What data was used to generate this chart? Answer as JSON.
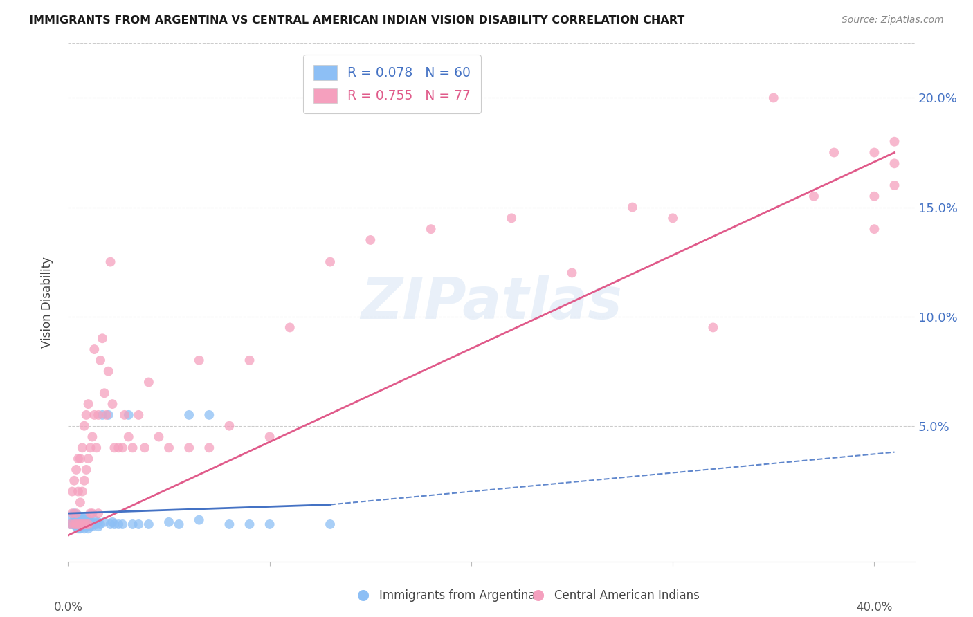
{
  "title": "IMMIGRANTS FROM ARGENTINA VS CENTRAL AMERICAN INDIAN VISION DISABILITY CORRELATION CHART",
  "source": "Source: ZipAtlas.com",
  "ylabel": "Vision Disability",
  "yticks": [
    0.0,
    0.05,
    0.1,
    0.15,
    0.2
  ],
  "ytick_labels": [
    "",
    "5.0%",
    "10.0%",
    "15.0%",
    "20.0%"
  ],
  "xtick_labels": [
    "0.0%",
    "",
    "",
    "",
    "40.0%"
  ],
  "xlim": [
    0.0,
    0.42
  ],
  "ylim": [
    -0.012,
    0.225
  ],
  "argentina_color": "#8dbff5",
  "argentina_color_line": "#4472c4",
  "cai_color": "#f5a0be",
  "cai_color_line": "#e05a8a",
  "argentina_R": 0.078,
  "argentina_N": 60,
  "cai_R": 0.755,
  "cai_N": 77,
  "watermark": "ZIPatlas",
  "legend_label_1": "Immigrants from Argentina",
  "legend_label_2": "Central American Indians",
  "argentina_x": [
    0.001,
    0.002,
    0.002,
    0.003,
    0.003,
    0.003,
    0.004,
    0.004,
    0.004,
    0.005,
    0.005,
    0.005,
    0.005,
    0.006,
    0.006,
    0.006,
    0.006,
    0.007,
    0.007,
    0.007,
    0.008,
    0.008,
    0.008,
    0.009,
    0.009,
    0.009,
    0.01,
    0.01,
    0.01,
    0.011,
    0.011,
    0.012,
    0.012,
    0.013,
    0.013,
    0.014,
    0.015,
    0.015,
    0.016,
    0.017,
    0.018,
    0.02,
    0.021,
    0.022,
    0.023,
    0.025,
    0.027,
    0.03,
    0.032,
    0.035,
    0.04,
    0.05,
    0.055,
    0.06,
    0.065,
    0.07,
    0.08,
    0.09,
    0.1,
    0.13
  ],
  "argentina_y": [
    0.005,
    0.005,
    0.008,
    0.005,
    0.007,
    0.01,
    0.004,
    0.006,
    0.008,
    0.003,
    0.005,
    0.007,
    0.009,
    0.003,
    0.005,
    0.006,
    0.008,
    0.004,
    0.006,
    0.008,
    0.003,
    0.005,
    0.007,
    0.004,
    0.006,
    0.008,
    0.003,
    0.005,
    0.007,
    0.004,
    0.006,
    0.004,
    0.006,
    0.005,
    0.007,
    0.005,
    0.004,
    0.006,
    0.005,
    0.055,
    0.006,
    0.055,
    0.005,
    0.006,
    0.005,
    0.005,
    0.005,
    0.055,
    0.005,
    0.005,
    0.005,
    0.006,
    0.005,
    0.055,
    0.007,
    0.055,
    0.005,
    0.005,
    0.005,
    0.005
  ],
  "cai_x": [
    0.001,
    0.002,
    0.002,
    0.003,
    0.003,
    0.004,
    0.004,
    0.004,
    0.005,
    0.005,
    0.005,
    0.006,
    0.006,
    0.006,
    0.007,
    0.007,
    0.007,
    0.008,
    0.008,
    0.008,
    0.009,
    0.009,
    0.009,
    0.01,
    0.01,
    0.01,
    0.011,
    0.011,
    0.012,
    0.012,
    0.013,
    0.013,
    0.014,
    0.015,
    0.015,
    0.016,
    0.017,
    0.018,
    0.019,
    0.02,
    0.021,
    0.022,
    0.023,
    0.025,
    0.027,
    0.028,
    0.03,
    0.032,
    0.035,
    0.038,
    0.04,
    0.045,
    0.05,
    0.06,
    0.065,
    0.07,
    0.08,
    0.09,
    0.1,
    0.11,
    0.13,
    0.15,
    0.18,
    0.22,
    0.25,
    0.28,
    0.3,
    0.32,
    0.35,
    0.37,
    0.38,
    0.4,
    0.4,
    0.4,
    0.41,
    0.41,
    0.41
  ],
  "cai_y": [
    0.005,
    0.01,
    0.02,
    0.005,
    0.025,
    0.005,
    0.01,
    0.03,
    0.005,
    0.02,
    0.035,
    0.005,
    0.015,
    0.035,
    0.005,
    0.02,
    0.04,
    0.005,
    0.025,
    0.05,
    0.005,
    0.03,
    0.055,
    0.005,
    0.035,
    0.06,
    0.01,
    0.04,
    0.01,
    0.045,
    0.055,
    0.085,
    0.04,
    0.01,
    0.055,
    0.08,
    0.09,
    0.065,
    0.055,
    0.075,
    0.125,
    0.06,
    0.04,
    0.04,
    0.04,
    0.055,
    0.045,
    0.04,
    0.055,
    0.04,
    0.07,
    0.045,
    0.04,
    0.04,
    0.08,
    0.04,
    0.05,
    0.08,
    0.045,
    0.095,
    0.125,
    0.135,
    0.14,
    0.145,
    0.12,
    0.15,
    0.145,
    0.095,
    0.2,
    0.155,
    0.175,
    0.14,
    0.155,
    0.175,
    0.18,
    0.17,
    0.16
  ],
  "arg_line_x": [
    0.0,
    0.13
  ],
  "arg_line_y": [
    0.01,
    0.014
  ],
  "cai_line_x": [
    0.0,
    0.41
  ],
  "cai_line_y": [
    0.0,
    0.175
  ],
  "dash_line_x": [
    0.13,
    0.41
  ],
  "dash_line_y": [
    0.014,
    0.038
  ]
}
